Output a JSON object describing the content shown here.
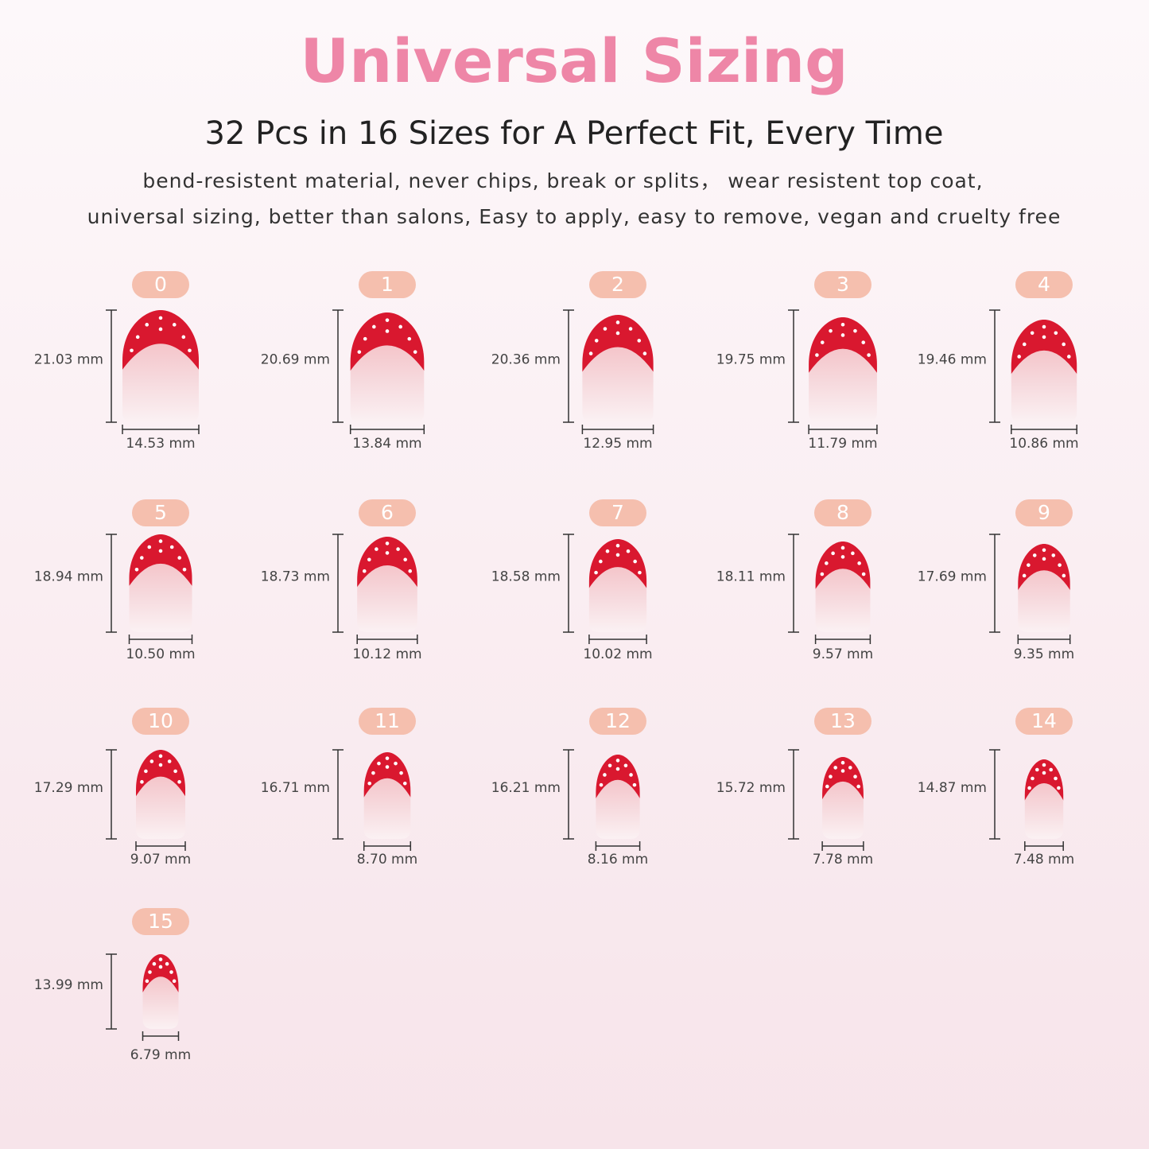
{
  "header": {
    "title": "Universal Sizing",
    "subtitle": "32 Pcs in 16 Sizes for A Perfect Fit, Every Time",
    "description": [
      "bend-resistent material, never chips, break or splits，  wear resistent top coat,",
      "universal sizing, better than salons, Easy to apply, easy to remove, vegan and cruelty free"
    ]
  },
  "sizes": [
    {
      "label": "0",
      "length": "21.03 mm",
      "width": "14.53 mm"
    },
    {
      "label": "1",
      "length": "20.69 mm",
      "width": "13.84 mm"
    },
    {
      "label": "2",
      "length": "20.36 mm",
      "width": "12.95 mm"
    },
    {
      "label": "3",
      "length": "19.75 mm",
      "width": "11.79 mm"
    },
    {
      "label": "4",
      "length": "19.46 mm",
      "width": "10.86 mm"
    },
    {
      "label": "5",
      "length": "18.94 mm",
      "width": "10.50 mm"
    },
    {
      "label": "6",
      "length": "18.73 mm",
      "width": "10.12 mm"
    },
    {
      "label": "7",
      "length": "18.58 mm",
      "width": "10.02 mm"
    },
    {
      "label": "8",
      "length": "18.11 mm",
      "width": "9.57 mm"
    },
    {
      "label": "9",
      "length": "17.69 mm",
      "width": "9.35 mm"
    },
    {
      "label": "10",
      "length": "17.29 mm",
      "width": "9.07 mm"
    },
    {
      "label": "11",
      "length": "16.71 mm",
      "width": "8.70 mm"
    },
    {
      "label": "12",
      "length": "16.21 mm",
      "width": "8.16 mm"
    },
    {
      "label": "13",
      "length": "15.72 mm",
      "width": "7.78 mm"
    },
    {
      "label": "14",
      "length": "14.87 mm",
      "width": "7.48 mm"
    },
    {
      "label": "15",
      "length": "13.99 mm",
      "width": "6.79 mm"
    }
  ]
}
